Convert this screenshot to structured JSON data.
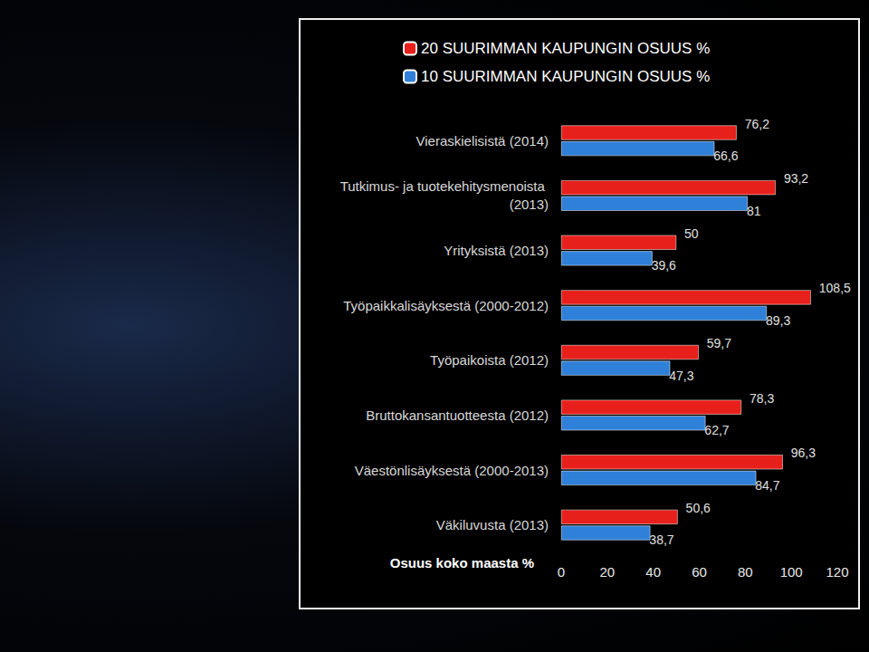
{
  "chart_data": {
    "type": "bar",
    "orientation": "horizontal",
    "categories": [
      "Vieraskielisistä (2014)",
      "Tutkimus- ja tuotekehitysmenoista (2013)",
      "Yrityksistä (2013)",
      "Työpaikkalisäyksestä (2000-2012)",
      "Työpaikoista (2012)",
      "Bruttokansantuotteesta (2012)",
      "Väestönlisäyksestä (2000-2013)",
      "Väkiluvusta (2013)"
    ],
    "series": [
      {
        "name": "20 SUURIMMAN KAUPUNGIN OSUUS %",
        "color": "#e8201c",
        "values": [
          76.2,
          93.2,
          50,
          108.5,
          59.7,
          78.3,
          96.3,
          50.6
        ],
        "value_labels": [
          "76,2",
          "93,2",
          "50",
          "108,5",
          "59,7",
          "78,3",
          "96,3",
          "50,6"
        ]
      },
      {
        "name": "10 SUURIMMAN KAUPUNGIN OSUUS %",
        "color": "#2f80d8",
        "values": [
          66.6,
          81,
          39.6,
          89.3,
          47.3,
          62.7,
          84.7,
          38.7
        ],
        "value_labels": [
          "66,6",
          "81",
          "39,6",
          "89,3",
          "47,3",
          "62,7",
          "84,7",
          "38,7"
        ]
      }
    ],
    "x_label": "Osuus koko maasta %",
    "xlim": [
      0,
      120
    ],
    "xticks": [
      0,
      20,
      40,
      60,
      80,
      100,
      120
    ],
    "grid": false,
    "legend": "top",
    "data_labels": true
  }
}
